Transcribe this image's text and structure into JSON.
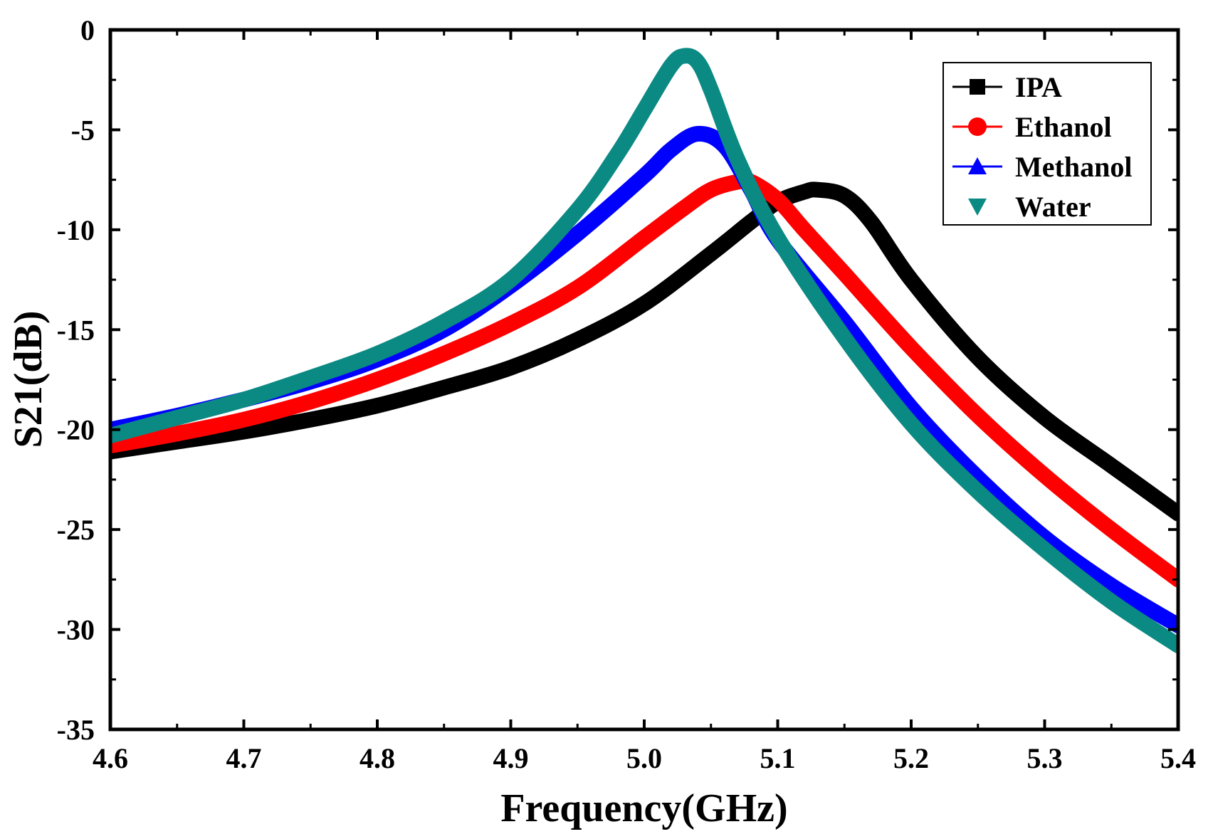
{
  "chart_data": {
    "type": "line",
    "title": "",
    "xlabel": "Frequency(GHz)",
    "ylabel": "S21(dB)",
    "xlim": [
      4.6,
      5.4
    ],
    "ylim": [
      -35,
      0
    ],
    "xticks": [
      4.6,
      4.7,
      4.8,
      4.9,
      5.0,
      5.1,
      5.2,
      5.3,
      5.4
    ],
    "xtick_labels": [
      "4.6",
      "4.7",
      "4.8",
      "4.9",
      "5.0",
      "5.1",
      "5.2",
      "5.3",
      "5.4"
    ],
    "yticks": [
      0,
      -5,
      -10,
      -15,
      -20,
      -25,
      -30,
      -35
    ],
    "ytick_labels": [
      "0",
      "-5",
      "-10",
      "-15",
      "-20",
      "-25",
      "-30",
      "-35"
    ],
    "grid": false,
    "legend_position": "top-right",
    "series": [
      {
        "name": "IPA",
        "color": "#000000",
        "marker": "square",
        "peak_frequency": 5.13,
        "peak_value": -8.0,
        "x": [
          4.6,
          4.65,
          4.7,
          4.75,
          4.8,
          4.85,
          4.9,
          4.95,
          5.0,
          5.05,
          5.08,
          5.1,
          5.12,
          5.13,
          5.15,
          5.17,
          5.2,
          5.25,
          5.3,
          5.35,
          5.4
        ],
        "values": [
          -21.1,
          -20.6,
          -20.1,
          -19.5,
          -18.8,
          -17.9,
          -16.9,
          -15.5,
          -13.7,
          -11.2,
          -9.6,
          -8.6,
          -8.1,
          -8.0,
          -8.3,
          -9.6,
          -12.5,
          -16.4,
          -19.4,
          -21.8,
          -24.2
        ]
      },
      {
        "name": "Ethanol",
        "color": "#ff0000",
        "marker": "circle",
        "peak_frequency": 5.07,
        "peak_value": -7.5,
        "x": [
          4.6,
          4.65,
          4.7,
          4.75,
          4.8,
          4.85,
          4.9,
          4.95,
          5.0,
          5.03,
          5.05,
          5.07,
          5.08,
          5.1,
          5.12,
          5.15,
          5.2,
          5.25,
          5.3,
          5.35,
          5.4
        ],
        "values": [
          -20.8,
          -20.2,
          -19.5,
          -18.6,
          -17.5,
          -16.2,
          -14.7,
          -12.9,
          -10.4,
          -8.9,
          -8.0,
          -7.6,
          -7.6,
          -8.5,
          -10.0,
          -12.2,
          -15.9,
          -19.3,
          -22.3,
          -25.0,
          -27.5
        ]
      },
      {
        "name": "Methanol",
        "color": "#0000ff",
        "marker": "triangle-up",
        "peak_frequency": 5.04,
        "peak_value": -5.2,
        "x": [
          4.6,
          4.65,
          4.7,
          4.75,
          4.8,
          4.85,
          4.9,
          4.95,
          5.0,
          5.02,
          5.04,
          5.06,
          5.08,
          5.1,
          5.15,
          5.2,
          5.25,
          5.3,
          5.35,
          5.4
        ],
        "values": [
          -20.0,
          -19.3,
          -18.5,
          -17.6,
          -16.5,
          -15.0,
          -12.8,
          -10.2,
          -7.3,
          -6.0,
          -5.2,
          -5.8,
          -8.0,
          -10.5,
          -14.6,
          -18.9,
          -22.4,
          -25.4,
          -27.8,
          -29.8
        ]
      },
      {
        "name": "Water",
        "color": "#0b8a84",
        "marker": "triangle-down",
        "peak_frequency": 5.03,
        "peak_value": -1.3,
        "x": [
          4.6,
          4.65,
          4.7,
          4.75,
          4.8,
          4.85,
          4.9,
          4.95,
          4.98,
          5.0,
          5.02,
          5.03,
          5.04,
          5.05,
          5.07,
          5.1,
          5.15,
          5.2,
          5.25,
          5.3,
          5.35,
          5.4
        ],
        "values": [
          -20.3,
          -19.4,
          -18.5,
          -17.4,
          -16.2,
          -14.6,
          -12.5,
          -9.0,
          -6.2,
          -4.0,
          -1.8,
          -1.3,
          -1.6,
          -3.0,
          -6.5,
          -10.4,
          -15.4,
          -19.7,
          -23.1,
          -26.0,
          -28.6,
          -30.8
        ]
      }
    ]
  }
}
